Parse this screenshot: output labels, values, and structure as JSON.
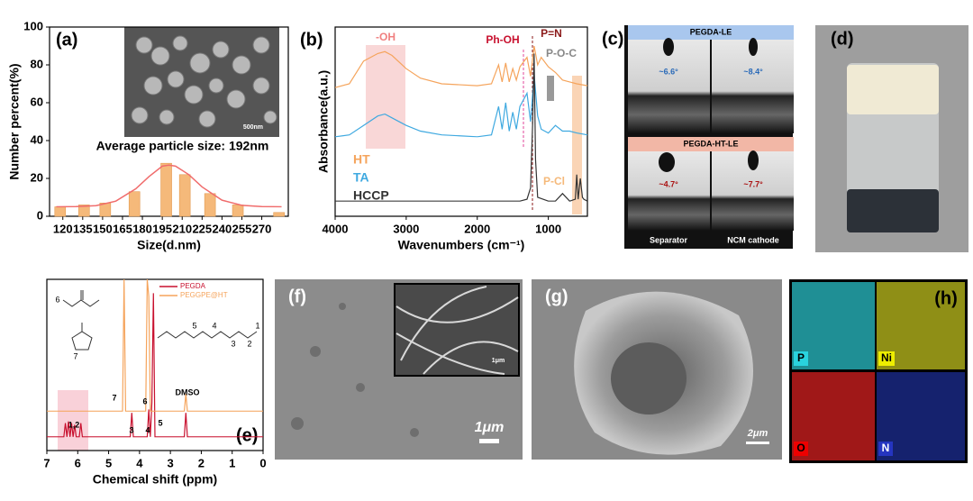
{
  "chart_data": [
    {
      "type": "bar",
      "panel_label": "(a)",
      "ylabel": "Number percent(%)",
      "xlabel": "Size(d.nm)",
      "annotation": "Average particle size: 192nm",
      "inset_scale": "500nm",
      "x": [
        118,
        136,
        152,
        174,
        198,
        212,
        231,
        252,
        283
      ],
      "values": [
        5,
        6,
        7,
        13,
        28,
        22,
        12,
        6,
        2
      ],
      "color": "#f5b97a",
      "fit": {
        "x": [
          115,
          130,
          145,
          160,
          175,
          185,
          195,
          200,
          205,
          215,
          225,
          240,
          255,
          270,
          285
        ],
        "values": [
          5,
          5.1,
          5.6,
          8,
          14.5,
          21,
          26.5,
          27,
          26.5,
          22,
          15.5,
          8.5,
          5.8,
          5.1,
          5.0
        ],
        "color": "#f06c6c"
      },
      "xlim": [
        110,
        290
      ],
      "ylim": [
        0,
        100
      ],
      "xticks": [
        120,
        135,
        150,
        165,
        180,
        195,
        210,
        225,
        240,
        255,
        270
      ],
      "yticks": [
        0,
        20,
        40,
        60,
        80,
        100
      ]
    },
    {
      "type": "line",
      "panel_label": "(b)",
      "ylabel": "Absorbance(a.u.)",
      "xlabel": "Wavenumbers (cm⁻¹)",
      "annotations": [
        "-OH",
        "Ph-OH",
        "P=N",
        "P-O-C",
        "P-Cl"
      ],
      "xlim": [
        4000,
        450
      ],
      "ylim": [
        0,
        10
      ],
      "xticks": [
        4000,
        3000,
        2000,
        1000
      ],
      "series": [
        {
          "name": "HT",
          "color": "#f5a45c",
          "x": [
            4000,
            3800,
            3600,
            3400,
            3300,
            3200,
            3000,
            2800,
            2500,
            2000,
            1800,
            1700,
            1650,
            1600,
            1550,
            1500,
            1450,
            1400,
            1300,
            1250,
            1200,
            1150,
            1100,
            1000,
            900,
            800,
            700,
            600,
            450
          ],
          "values": [
            6.8,
            7.0,
            8.2,
            8.6,
            8.7,
            8.5,
            7.8,
            7.3,
            7.0,
            6.9,
            7.0,
            8.0,
            7.1,
            8.1,
            7.1,
            7.8,
            7.2,
            7.9,
            8.4,
            7.4,
            9.0,
            8.0,
            8.4,
            7.9,
            7.6,
            7.2,
            7.1,
            7.0,
            6.9
          ]
        },
        {
          "name": "TA",
          "color": "#3fa9e0",
          "x": [
            4000,
            3800,
            3600,
            3400,
            3300,
            3200,
            3000,
            2800,
            2500,
            2000,
            1800,
            1700,
            1650,
            1600,
            1550,
            1500,
            1450,
            1400,
            1300,
            1250,
            1200,
            1150,
            1100,
            1000,
            900,
            800,
            700,
            600,
            450
          ],
          "values": [
            4.2,
            4.3,
            4.8,
            5.3,
            5.4,
            5.2,
            4.8,
            4.5,
            4.3,
            4.2,
            4.3,
            5.8,
            4.6,
            6.0,
            4.5,
            5.5,
            4.6,
            5.8,
            6.5,
            5.0,
            7.5,
            5.3,
            4.6,
            4.4,
            4.8,
            4.5,
            4.5,
            4.4,
            4.3
          ]
        },
        {
          "name": "HCCP",
          "color": "#333333",
          "x": [
            4000,
            3500,
            3000,
            2500,
            2000,
            1600,
            1400,
            1300,
            1250,
            1220,
            1200,
            1180,
            1150,
            1000,
            900,
            800,
            700,
            620,
            600,
            580,
            550,
            520,
            500,
            450
          ],
          "values": [
            0.8,
            0.8,
            0.8,
            0.8,
            0.8,
            0.8,
            0.8,
            0.9,
            1.5,
            5,
            8.6,
            3,
            1,
            0.8,
            0.8,
            1.2,
            0.8,
            0.9,
            2.2,
            0.9,
            2.0,
            1.0,
            0.9,
            0.8
          ]
        }
      ]
    },
    {
      "type": "line",
      "panel_label": "(e)",
      "xlabel": "Chemical shift (ppm)",
      "peak_labels": [
        "1,2",
        "3",
        "4",
        "5",
        "6",
        "7",
        "DMSO"
      ],
      "structure_labels": [
        "6",
        "7",
        "5",
        "4",
        "3",
        "2",
        "1"
      ],
      "xlim": [
        7,
        0
      ],
      "ylim": [
        0,
        10
      ],
      "xticks": [
        7,
        6,
        5,
        4,
        3,
        2,
        1,
        0
      ],
      "series": [
        {
          "name": "PEGDA",
          "color": "#c8102e",
          "x": [
            7,
            6.45,
            6.4,
            6.35,
            6.3,
            6.25,
            6.2,
            6.15,
            6.1,
            6.05,
            5.95,
            5.9,
            5.85,
            4.3,
            4.25,
            4.2,
            4.15,
            3.75,
            3.7,
            3.65,
            3.6,
            3.55,
            3.5,
            2.55,
            2.5,
            2.45,
            0
          ],
          "values": [
            0.8,
            0.8,
            1.6,
            0.8,
            1.7,
            0.8,
            1.6,
            0.8,
            1.5,
            0.8,
            0.8,
            1.6,
            0.8,
            0.8,
            2.2,
            0.8,
            0.8,
            0.8,
            2.4,
            0.8,
            2.8,
            9.2,
            0.8,
            0.8,
            2.2,
            0.8,
            0.8
          ]
        },
        {
          "name": "PEGGPE@HT",
          "color": "#f5a45c",
          "x": [
            7,
            4.55,
            4.5,
            4.45,
            3.8,
            3.75,
            3.7,
            3.65,
            2.55,
            2.5,
            2.45,
            0
          ],
          "values": [
            2.3,
            2.3,
            10,
            2.3,
            2.3,
            10,
            9,
            2.3,
            2.3,
            3.3,
            2.3,
            2.3
          ]
        }
      ]
    }
  ],
  "panels": {
    "c": {
      "label": "(c)",
      "top_title": "PEGDA-LE",
      "top_angles": [
        "~6.6°",
        "~8.4°"
      ],
      "bottom_title": "PEGDA-HT-LE",
      "bottom_angles": [
        "~4.7°",
        "~7.7°"
      ],
      "captions": [
        "Separator",
        "NCM cathode"
      ]
    },
    "d": {
      "label": "(d)"
    },
    "f": {
      "label": "(f)",
      "scale": "1μm",
      "inset_scale": "1μm"
    },
    "g": {
      "label": "(g)",
      "scale": "2μm"
    },
    "h": {
      "label": "(h)",
      "maps": [
        "P",
        "Ni",
        "O",
        "N"
      ]
    }
  }
}
